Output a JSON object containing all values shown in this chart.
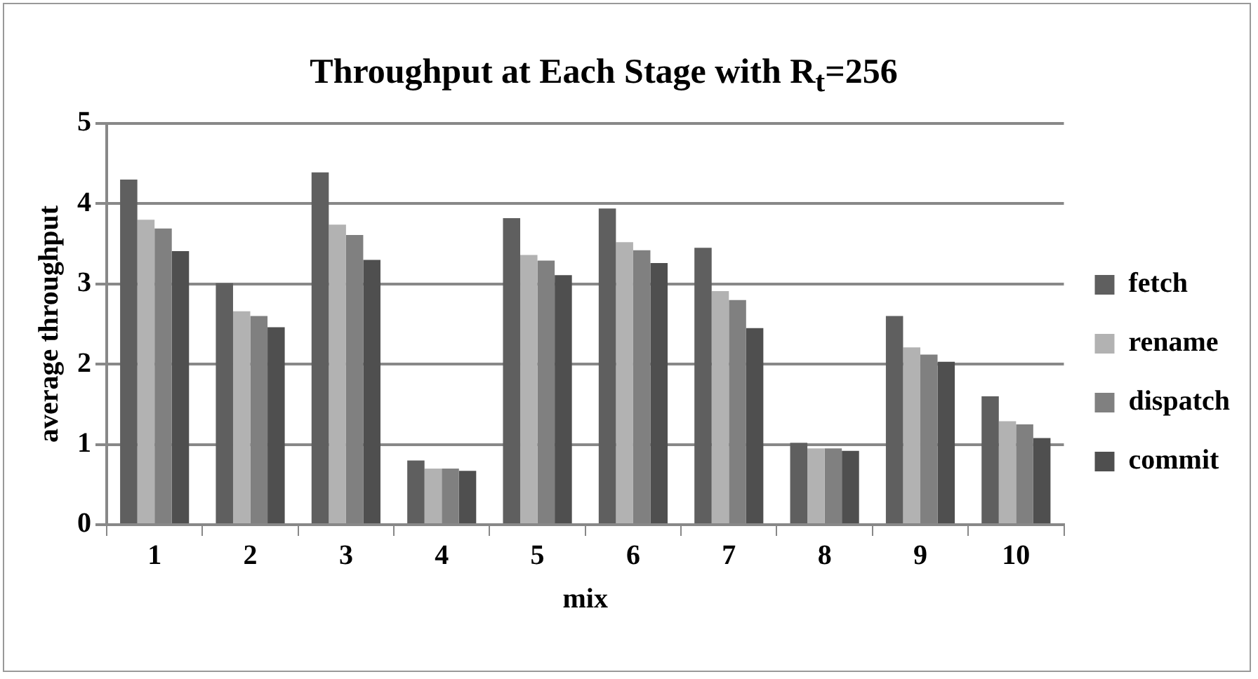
{
  "chart_data": {
    "type": "bar",
    "title": "Throughput at Each Stage with R$_{t}$=256",
    "xlabel": "mix",
    "ylabel": "average throughput",
    "categories": [
      "1",
      "2",
      "3",
      "4",
      "5",
      "6",
      "7",
      "8",
      "9",
      "10"
    ],
    "series": [
      {
        "name": "fetch",
        "color": "#5f5f5f",
        "values": [
          4.3,
          3.01,
          4.39,
          0.8,
          3.82,
          3.94,
          3.45,
          1.02,
          2.6,
          1.6
        ]
      },
      {
        "name": "rename",
        "color": "#b2b2b2",
        "values": [
          3.8,
          2.66,
          3.74,
          0.7,
          3.36,
          3.52,
          2.91,
          0.95,
          2.21,
          1.29
        ]
      },
      {
        "name": "dispatch",
        "color": "#808080",
        "values": [
          3.69,
          2.6,
          3.61,
          0.7,
          3.29,
          3.42,
          2.8,
          0.95,
          2.12,
          1.25
        ]
      },
      {
        "name": "commit",
        "color": "#4f4f4f",
        "values": [
          3.41,
          2.46,
          3.3,
          0.67,
          3.11,
          3.26,
          2.45,
          0.92,
          2.03,
          1.08
        ]
      }
    ],
    "ylim": [
      0,
      5
    ],
    "yticks": [
      0,
      1,
      2,
      3,
      4,
      5
    ],
    "grid": "y",
    "legend": "right"
  }
}
